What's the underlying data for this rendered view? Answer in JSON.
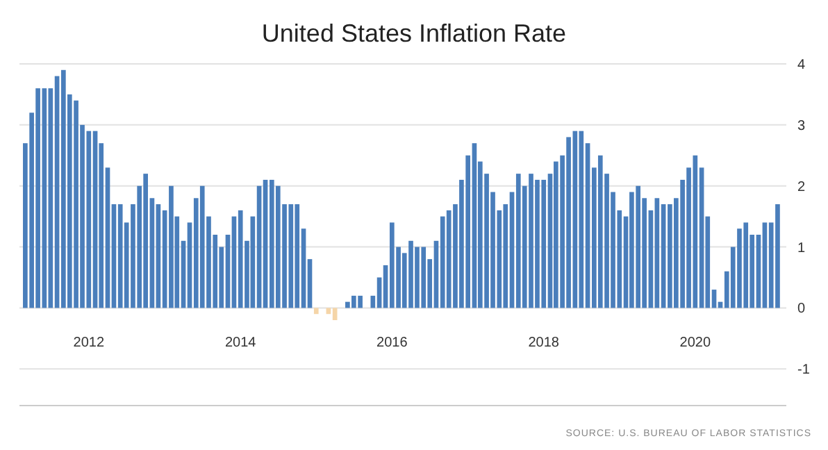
{
  "chart_data": {
    "type": "bar",
    "title": "United States Inflation Rate",
    "x": [
      "2011-03",
      "2011-04",
      "2011-05",
      "2011-06",
      "2011-07",
      "2011-08",
      "2011-09",
      "2011-10",
      "2011-11",
      "2011-12",
      "2012-01",
      "2012-02",
      "2012-03",
      "2012-04",
      "2012-05",
      "2012-06",
      "2012-07",
      "2012-08",
      "2012-09",
      "2012-10",
      "2012-11",
      "2012-12",
      "2013-01",
      "2013-02",
      "2013-03",
      "2013-04",
      "2013-05",
      "2013-06",
      "2013-07",
      "2013-08",
      "2013-09",
      "2013-10",
      "2013-11",
      "2013-12",
      "2014-01",
      "2014-02",
      "2014-03",
      "2014-04",
      "2014-05",
      "2014-06",
      "2014-07",
      "2014-08",
      "2014-09",
      "2014-10",
      "2014-11",
      "2014-12",
      "2015-01",
      "2015-02",
      "2015-03",
      "2015-04",
      "2015-05",
      "2015-06",
      "2015-07",
      "2015-08",
      "2015-09",
      "2015-10",
      "2015-11",
      "2015-12",
      "2016-01",
      "2016-02",
      "2016-03",
      "2016-04",
      "2016-05",
      "2016-06",
      "2016-07",
      "2016-08",
      "2016-09",
      "2016-10",
      "2016-11",
      "2016-12",
      "2017-01",
      "2017-02",
      "2017-03",
      "2017-04",
      "2017-05",
      "2017-06",
      "2017-07",
      "2017-08",
      "2017-09",
      "2017-10",
      "2017-11",
      "2017-12",
      "2018-01",
      "2018-02",
      "2018-03",
      "2018-04",
      "2018-05",
      "2018-06",
      "2018-07",
      "2018-08",
      "2018-09",
      "2018-10",
      "2018-11",
      "2018-12",
      "2019-01",
      "2019-02",
      "2019-03",
      "2019-04",
      "2019-05",
      "2019-06",
      "2019-07",
      "2019-08",
      "2019-09",
      "2019-10",
      "2019-11",
      "2019-12",
      "2020-01",
      "2020-02",
      "2020-03",
      "2020-04",
      "2020-05",
      "2020-06",
      "2020-07",
      "2020-08",
      "2020-09",
      "2020-10",
      "2020-11",
      "2020-12",
      "2021-01",
      "2021-02"
    ],
    "values": [
      2.7,
      3.2,
      3.6,
      3.6,
      3.6,
      3.8,
      3.9,
      3.5,
      3.4,
      3.0,
      2.9,
      2.9,
      2.7,
      2.3,
      1.7,
      1.7,
      1.4,
      1.7,
      2.0,
      2.2,
      1.8,
      1.7,
      1.6,
      2.0,
      1.5,
      1.1,
      1.4,
      1.8,
      2.0,
      1.5,
      1.2,
      1.0,
      1.2,
      1.5,
      1.6,
      1.1,
      1.5,
      2.0,
      2.1,
      2.1,
      2.0,
      1.7,
      1.7,
      1.7,
      1.3,
      0.8,
      -0.1,
      0.0,
      -0.1,
      -0.2,
      0.0,
      0.1,
      0.2,
      0.2,
      0.0,
      0.2,
      0.5,
      0.7,
      1.4,
      1.0,
      0.9,
      1.1,
      1.0,
      1.0,
      0.8,
      1.1,
      1.5,
      1.6,
      1.7,
      2.1,
      2.5,
      2.7,
      2.4,
      2.2,
      1.9,
      1.6,
      1.7,
      1.9,
      2.2,
      2.0,
      2.2,
      2.1,
      2.1,
      2.2,
      2.4,
      2.5,
      2.8,
      2.9,
      2.9,
      2.7,
      2.3,
      2.5,
      2.2,
      1.9,
      1.6,
      1.5,
      1.9,
      2.0,
      1.8,
      1.6,
      1.8,
      1.7,
      1.7,
      1.8,
      2.1,
      2.3,
      2.5,
      2.3,
      1.5,
      0.3,
      0.1,
      0.6,
      1.0,
      1.3,
      1.4,
      1.2,
      1.2,
      1.4,
      1.4,
      1.7
    ],
    "colors": [
      "#4a7ebb",
      "#4a7ebb",
      "#4a7ebb",
      "#4a7ebb",
      "#4a7ebb",
      "#4a7ebb",
      "#4a7ebb",
      "#4a7ebb",
      "#4a7ebb",
      "#4a7ebb",
      "#4a7ebb",
      "#4a7ebb",
      "#4a7ebb",
      "#4a7ebb",
      "#4a7ebb",
      "#4a7ebb",
      "#4a7ebb",
      "#4a7ebb",
      "#4a7ebb",
      "#4a7ebb",
      "#4a7ebb",
      "#4a7ebb",
      "#4a7ebb",
      "#4a7ebb",
      "#4a7ebb",
      "#4a7ebb",
      "#4a7ebb",
      "#4a7ebb",
      "#4a7ebb",
      "#4a7ebb",
      "#4a7ebb",
      "#4a7ebb",
      "#4a7ebb",
      "#4a7ebb",
      "#4a7ebb",
      "#4a7ebb",
      "#4a7ebb",
      "#4a7ebb",
      "#4a7ebb",
      "#4a7ebb",
      "#4a7ebb",
      "#4a7ebb",
      "#4a7ebb",
      "#4a7ebb",
      "#4a7ebb",
      "#4a7ebb",
      "#f5d5a8",
      "#4a7ebb",
      "#f5d5a8",
      "#f5d5a8",
      "#4a7ebb",
      "#4a7ebb",
      "#4a7ebb",
      "#4a7ebb",
      "#4a7ebb",
      "#4a7ebb",
      "#4a7ebb",
      "#4a7ebb",
      "#4a7ebb",
      "#4a7ebb",
      "#4a7ebb",
      "#4a7ebb",
      "#4a7ebb",
      "#4a7ebb",
      "#4a7ebb",
      "#4a7ebb",
      "#4a7ebb",
      "#4a7ebb",
      "#4a7ebb",
      "#4a7ebb",
      "#4a7ebb",
      "#4a7ebb",
      "#4a7ebb",
      "#4a7ebb",
      "#4a7ebb",
      "#4a7ebb",
      "#4a7ebb",
      "#4a7ebb",
      "#4a7ebb",
      "#4a7ebb",
      "#4a7ebb",
      "#4a7ebb",
      "#4a7ebb",
      "#4a7ebb",
      "#4a7ebb",
      "#4a7ebb",
      "#4a7ebb",
      "#4a7ebb",
      "#4a7ebb",
      "#4a7ebb",
      "#4a7ebb",
      "#4a7ebb",
      "#4a7ebb",
      "#4a7ebb",
      "#4a7ebb",
      "#4a7ebb",
      "#4a7ebb",
      "#4a7ebb",
      "#4a7ebb",
      "#4a7ebb",
      "#4a7ebb",
      "#4a7ebb",
      "#4a7ebb",
      "#4a7ebb",
      "#4a7ebb",
      "#4a7ebb",
      "#4a7ebb",
      "#4a7ebb",
      "#4a7ebb",
      "#4a7ebb",
      "#4a7ebb",
      "#4a7ebb",
      "#4a7ebb",
      "#4a7ebb",
      "#4a7ebb",
      "#4a7ebb",
      "#4a7ebb",
      "#4a7ebb",
      "#4a7ebb",
      "#4a7ebb"
    ],
    "xlim": [
      "2011-02-01",
      "2021-03-15"
    ],
    "xticks": [
      {
        "value": "2012-01",
        "label": "2012"
      },
      {
        "value": "2014-01",
        "label": "2014"
      },
      {
        "value": "2016-01",
        "label": "2016"
      },
      {
        "value": "2018-01",
        "label": "2018"
      },
      {
        "value": "2020-01",
        "label": "2020"
      }
    ],
    "ylim": [
      -1.6,
      4
    ],
    "yticks": [
      -1,
      0,
      1,
      2,
      3,
      4
    ],
    "grid": "y",
    "annotations": [
      "SOURCE: U.S. BUREAU OF LABOR STATISTICS"
    ]
  }
}
